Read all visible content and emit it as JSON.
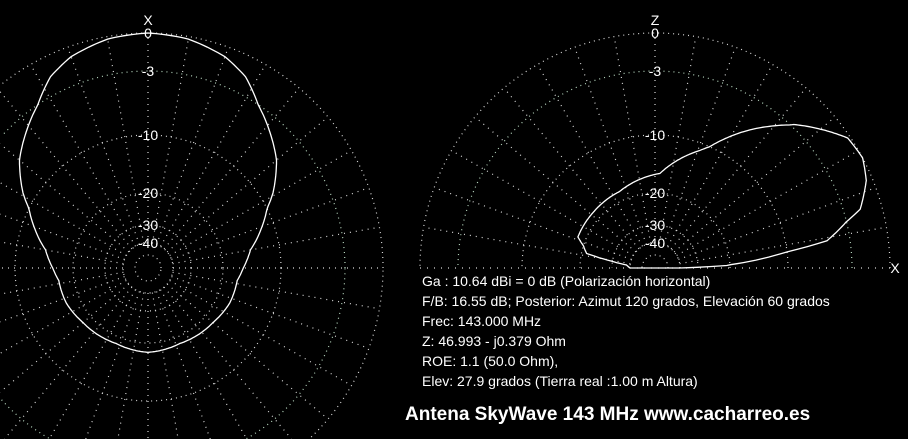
{
  "chart_data": [
    {
      "type": "polar-line",
      "axis_label_top": "X",
      "ring_labels": [
        "0",
        "-3",
        "-10",
        "-20",
        "-30",
        "-40"
      ],
      "ring_db": [
        0,
        -3,
        -10,
        -20,
        -30,
        -40
      ],
      "angle_range_deg": [
        0,
        360
      ],
      "grid": true,
      "pattern": {
        "angle_deg": [
          0,
          10,
          20,
          27,
          40,
          50,
          59,
          70,
          80,
          90,
          98,
          113,
          130,
          157,
          180
        ],
        "db": [
          0,
          -0.2,
          -0.8,
          -1.6,
          -4.2,
          -6.2,
          -8.6,
          -12,
          -15,
          -16.5,
          -17.4,
          -17.6,
          -18.3,
          -18.8,
          -18.4
        ]
      },
      "symmetric": true
    },
    {
      "type": "polar-line",
      "axis_label_top": "Z",
      "axis_label_right": "X",
      "ring_labels": [
        "0",
        "-3",
        "-10",
        "-20",
        "-30",
        "-40"
      ],
      "ring_db": [
        0,
        -3,
        -10,
        -20,
        -30,
        -40
      ],
      "angle_range_deg": [
        0,
        180
      ],
      "grid": true,
      "pattern": {
        "elevation_deg": [
          0,
          2,
          9,
          16,
          22.5,
          27.9,
          34,
          46,
          56,
          69,
          87,
          115,
          138,
          158,
          168,
          174,
          180
        ],
        "db": [
          -40,
          -21,
          -5.5,
          -1.7,
          -0.5,
          0,
          -0.2,
          -2.8,
          -6.4,
          -11.2,
          -16.6,
          -18.4,
          -18.6,
          -18.6,
          -21.6,
          -38,
          -40
        ]
      }
    }
  ],
  "info": {
    "lines": [
      "Ga : 10.64 dBi = 0 dB  (Polarización horizontal)",
      "F/B: 16.55 dB; Posterior: Azimut 120 grados,  Elevación 60 grados",
      "Frec: 143.000 MHz",
      "Z: 46.993 - j0.379 Ohm",
      "ROE: 1.1 (50.0 Ohm),",
      "Elev: 27.9 grados (Tierra real  :1.00 m Altura)"
    ],
    "title": "Antena SkyWave 143 MHz www.cacharreo.es"
  },
  "colors": {
    "background": "#000000",
    "grid": "#d8d8d8",
    "grid_alt": "#b8d8c0",
    "pattern": "#ffffff",
    "text": "#ffffff"
  }
}
